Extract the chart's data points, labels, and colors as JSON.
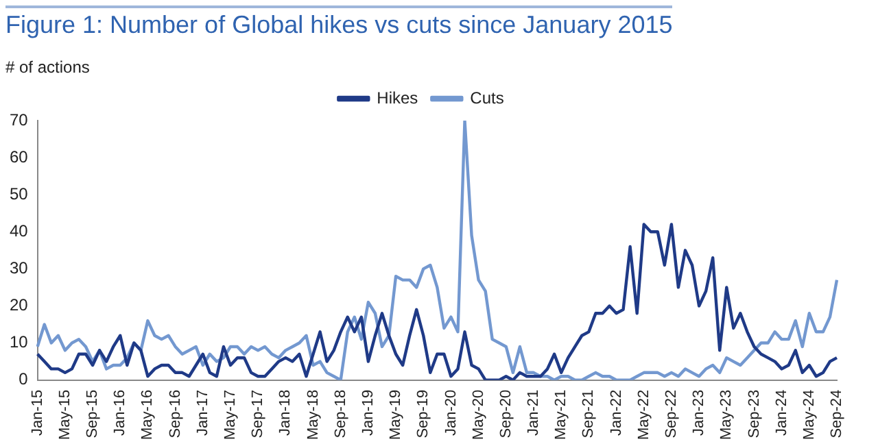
{
  "chart_data": {
    "type": "line",
    "title": "Figure 1: Number of Global hikes vs cuts since January 2015",
    "ylabel": "# of actions",
    "categories": [
      "Jan-15",
      null,
      null,
      null,
      "May-15",
      null,
      null,
      null,
      "Sep-15",
      null,
      null,
      null,
      "Jan-16",
      null,
      null,
      null,
      "May-16",
      null,
      null,
      null,
      "Sep-16",
      null,
      null,
      null,
      "Jan-17",
      null,
      null,
      null,
      "May-17",
      null,
      null,
      null,
      "Sep-17",
      null,
      null,
      null,
      "Jan-18",
      null,
      null,
      null,
      "May-18",
      null,
      null,
      null,
      "Sep-18",
      null,
      null,
      null,
      "Jan-19",
      null,
      null,
      null,
      "May-19",
      null,
      null,
      null,
      "Sep-19",
      null,
      null,
      null,
      "Jan-20",
      null,
      null,
      null,
      "May-20",
      null,
      null,
      null,
      "Sep-20",
      null,
      null,
      null,
      "Jan-21",
      null,
      null,
      null,
      "May-21",
      null,
      null,
      null,
      "Sep-21",
      null,
      null,
      null,
      "Jan-22",
      null,
      null,
      null,
      "May-22",
      null,
      null,
      null,
      "Sep-22",
      null,
      null,
      null,
      "Jan-23",
      null,
      null,
      null,
      "May-23",
      null,
      null,
      null,
      "Sep-23",
      null,
      null,
      null,
      "Jan-24",
      null,
      null,
      null,
      "May-24",
      null,
      null,
      null,
      "Sep-24"
    ],
    "series": [
      {
        "name": "Hikes",
        "color": "#1f3a87",
        "values": [
          7,
          5,
          3,
          3,
          2,
          3,
          7,
          7,
          4,
          8,
          5,
          9,
          12,
          4,
          10,
          8,
          1,
          3,
          4,
          4,
          2,
          2,
          1,
          4,
          7,
          2,
          1,
          9,
          4,
          6,
          6,
          2,
          1,
          1,
          3,
          5,
          6,
          5,
          7,
          1,
          7,
          13,
          5,
          8,
          13,
          17,
          13,
          17,
          5,
          12,
          18,
          12,
          7,
          4,
          12,
          19,
          12,
          2,
          7,
          7,
          1,
          3,
          13,
          4,
          3,
          0,
          0,
          0,
          1,
          0,
          2,
          1,
          1,
          1,
          3,
          7,
          2,
          6,
          9,
          12,
          13,
          18,
          18,
          20,
          18,
          19,
          36,
          18,
          42,
          40,
          40,
          31,
          42,
          25,
          35,
          31,
          20,
          24,
          33,
          8,
          25,
          14,
          18,
          13,
          9,
          7,
          6,
          5,
          3,
          4,
          8,
          2,
          4,
          1,
          2,
          5,
          6
        ]
      },
      {
        "name": "Cuts",
        "color": "#7398d0",
        "values": [
          9,
          15,
          10,
          12,
          8,
          10,
          11,
          9,
          5,
          8,
          3,
          4,
          4,
          6,
          10,
          8,
          16,
          12,
          11,
          12,
          9,
          7,
          8,
          9,
          4,
          7,
          5,
          6,
          9,
          9,
          7,
          9,
          8,
          9,
          7,
          6,
          8,
          9,
          10,
          12,
          4,
          5,
          2,
          1,
          0,
          13,
          17,
          11,
          21,
          18,
          9,
          12,
          28,
          27,
          27,
          25,
          30,
          31,
          25,
          14,
          17,
          13,
          70,
          39,
          27,
          24,
          11,
          10,
          9,
          2,
          9,
          2,
          2,
          1,
          1,
          0,
          1,
          1,
          0,
          0,
          1,
          2,
          1,
          1,
          0,
          0,
          0,
          1,
          2,
          2,
          2,
          1,
          2,
          1,
          3,
          2,
          1,
          3,
          4,
          2,
          6,
          5,
          4,
          6,
          8,
          10,
          10,
          13,
          11,
          11,
          16,
          9,
          18,
          13,
          13,
          17,
          27
        ]
      }
    ],
    "ylim": [
      0,
      70
    ],
    "yticks": [
      0,
      10,
      20,
      30,
      40,
      50,
      60,
      70
    ],
    "grid": false,
    "legend": "top",
    "marker": "none",
    "line_style": "solid"
  }
}
